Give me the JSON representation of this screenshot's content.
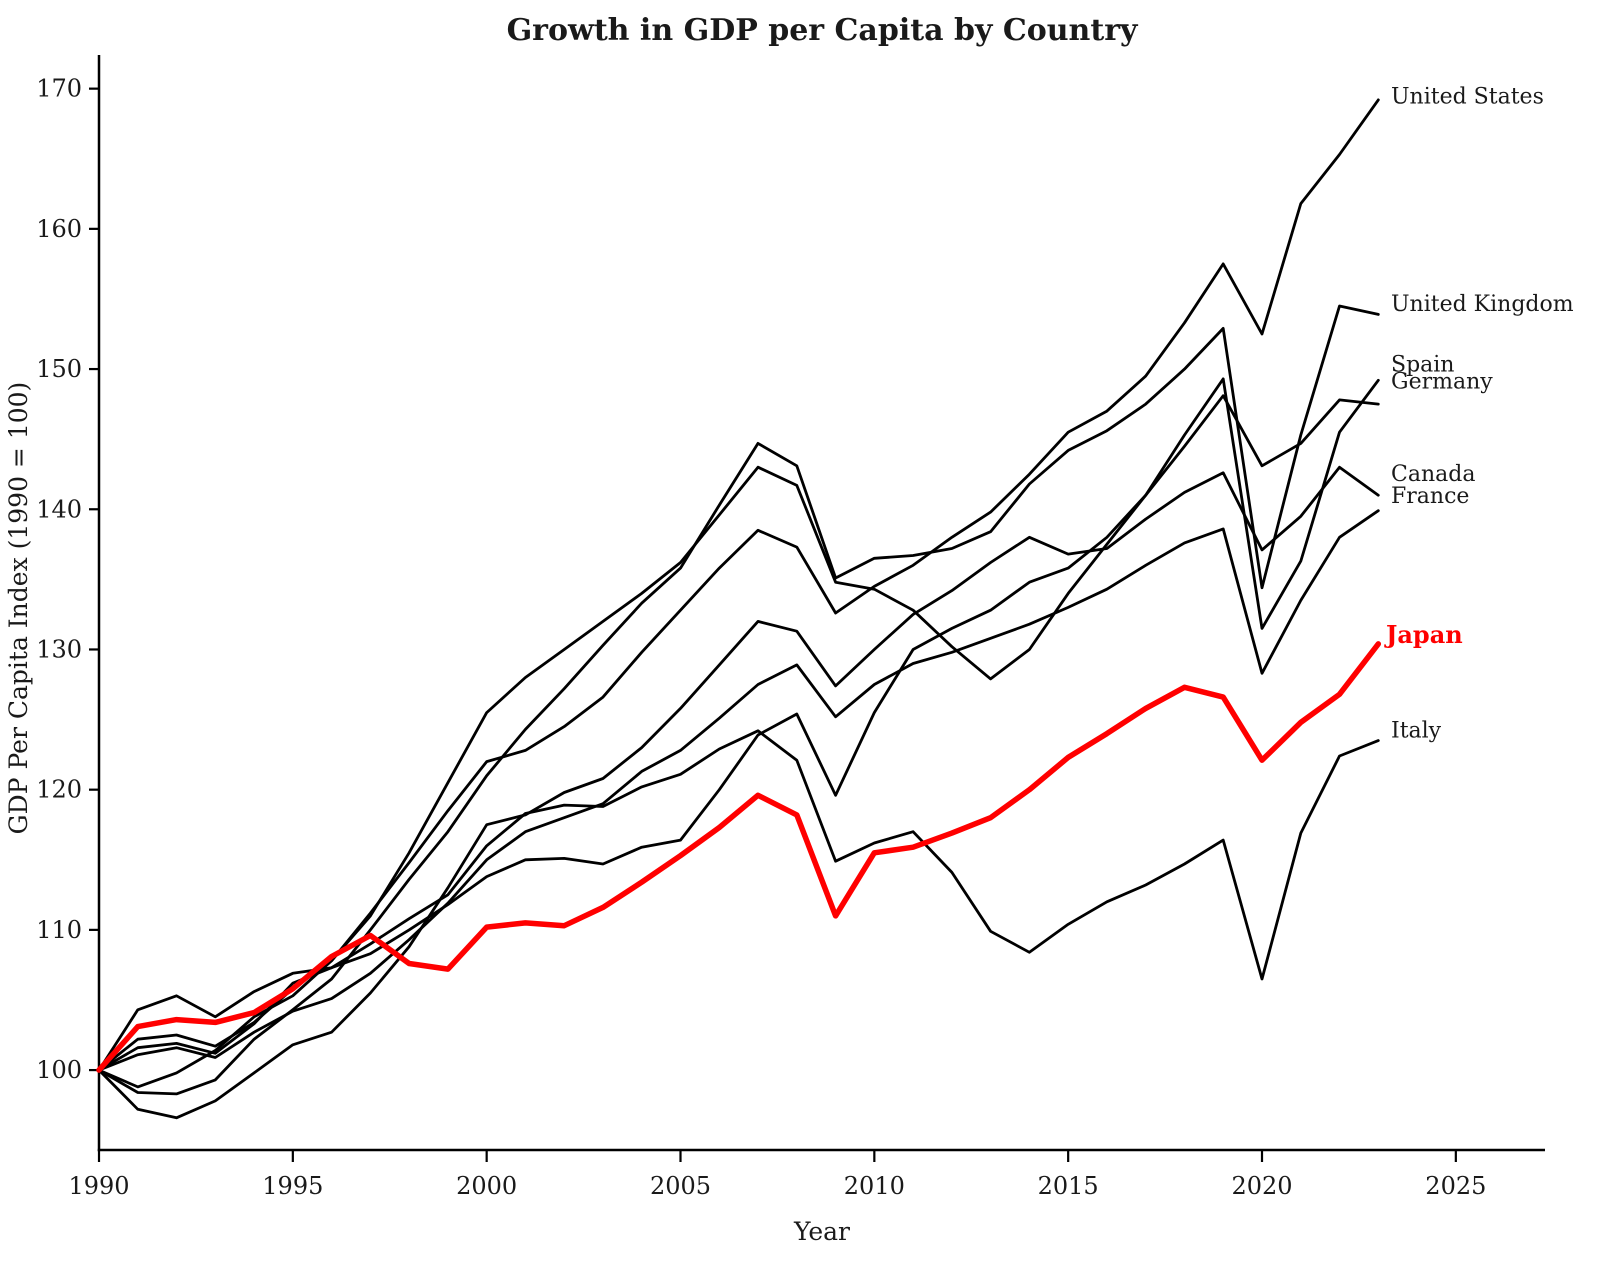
{
  "chart_data": {
    "type": "line",
    "title": "Growth in GDP per Capita by Country",
    "xlabel": "Year",
    "ylabel": "GDP Per Capita Index (1990 = 100)",
    "x_ticks": [
      1990,
      1995,
      2000,
      2005,
      2010,
      2015,
      2020,
      2025
    ],
    "y_ticks": [
      100,
      110,
      120,
      130,
      140,
      150,
      160,
      170
    ],
    "xlim": [
      1990,
      2027.3
    ],
    "ylim": [
      94.3,
      172.4
    ],
    "grid": false,
    "legend_position": "right-end-of-line-labels",
    "axis_color": "#000000",
    "accent_color": "#ff0000",
    "years": [
      1990,
      1991,
      1992,
      1993,
      1994,
      1995,
      1996,
      1997,
      1998,
      1999,
      2000,
      2001,
      2002,
      2003,
      2004,
      2005,
      2006,
      2007,
      2008,
      2009,
      2010,
      2011,
      2012,
      2013,
      2014,
      2015,
      2016,
      2017,
      2018,
      2019,
      2020,
      2021,
      2022,
      2023
    ],
    "series": [
      {
        "name": "United States",
        "color": "#000000",
        "line_width": 2.8,
        "label_bold": false,
        "label_value": 169.5,
        "values": [
          100,
          98.8,
          99.8,
          101.4,
          103.8,
          105.3,
          107.8,
          111.2,
          114.8,
          118.5,
          122.0,
          122.8,
          124.5,
          126.6,
          129.8,
          132.8,
          135.8,
          138.5,
          137.3,
          132.6,
          134.5,
          136.0,
          138.0,
          139.8,
          142.5,
          145.5,
          147.0,
          149.5,
          153.3,
          157.5,
          152.5,
          161.8,
          165.3,
          169.2
        ]
      },
      {
        "name": "United Kingdom",
        "color": "#000000",
        "line_width": 2.8,
        "label_bold": false,
        "label_value": 154.7,
        "values": [
          100,
          98.4,
          98.3,
          99.3,
          102.2,
          104.3,
          106.5,
          110.0,
          113.6,
          117.0,
          121.0,
          124.3,
          127.2,
          130.3,
          133.3,
          135.8,
          140.3,
          144.7,
          143.1,
          135.1,
          136.5,
          136.7,
          137.2,
          138.4,
          141.8,
          144.2,
          145.6,
          147.5,
          150.0,
          152.9,
          134.4,
          145.3,
          154.5,
          153.9
        ]
      },
      {
        "name": "Spain",
        "color": "#000000",
        "line_width": 2.8,
        "label_bold": false,
        "label_value": 150.4,
        "values": [
          100,
          102.2,
          102.5,
          101.7,
          103.4,
          105.8,
          107.8,
          111.0,
          115.5,
          120.5,
          125.5,
          128.0,
          130.0,
          132.0,
          134.0,
          136.2,
          139.6,
          143.0,
          141.7,
          134.8,
          134.3,
          132.8,
          130.2,
          127.9,
          130.0,
          134.0,
          137.5,
          141.0,
          145.3,
          149.3,
          131.5,
          136.3,
          145.5,
          149.2
        ]
      },
      {
        "name": "Germany",
        "color": "#000000",
        "line_width": 2.8,
        "label_bold": false,
        "label_value": 149.2,
        "values": [
          100,
          104.3,
          105.3,
          103.8,
          105.6,
          106.9,
          107.3,
          108.3,
          110.0,
          111.8,
          113.8,
          115.0,
          115.1,
          114.7,
          115.9,
          116.4,
          120.0,
          123.9,
          125.4,
          119.6,
          125.5,
          130.0,
          131.5,
          132.8,
          134.8,
          135.8,
          138.0,
          141.0,
          144.5,
          148.1,
          143.1,
          144.7,
          147.8,
          147.5
        ]
      },
      {
        "name": "Canada",
        "color": "#000000",
        "line_width": 2.8,
        "label_bold": false,
        "label_value": 142.6,
        "values": [
          100,
          97.2,
          96.6,
          97.8,
          99.8,
          101.8,
          102.7,
          105.5,
          108.8,
          113.0,
          117.5,
          118.2,
          119.8,
          120.8,
          123.0,
          125.8,
          128.9,
          132.0,
          131.3,
          127.4,
          130.0,
          132.5,
          134.2,
          136.2,
          138.0,
          136.8,
          137.2,
          139.3,
          141.2,
          142.6,
          137.1,
          139.5,
          143.0,
          141.0
        ]
      },
      {
        "name": "France",
        "color": "#000000",
        "line_width": 2.8,
        "label_bold": false,
        "label_value": 141.0,
        "values": [
          100,
          101.1,
          101.6,
          100.9,
          102.7,
          104.2,
          105.1,
          106.9,
          109.3,
          111.9,
          115.0,
          117.0,
          118.0,
          119.0,
          121.3,
          122.8,
          125.1,
          127.5,
          128.9,
          125.2,
          127.5,
          129.0,
          129.8,
          130.8,
          131.8,
          133.0,
          134.3,
          136.0,
          137.6,
          138.6,
          128.3,
          133.5,
          138.0,
          139.9
        ]
      },
      {
        "name": "Italy",
        "color": "#000000",
        "line_width": 2.8,
        "label_bold": false,
        "label_value": 124.3,
        "values": [
          100,
          101.6,
          101.9,
          101.2,
          103.3,
          106.2,
          107.3,
          109.0,
          110.8,
          112.5,
          116.0,
          118.3,
          118.9,
          118.8,
          120.2,
          121.1,
          122.9,
          124.2,
          122.1,
          114.9,
          116.2,
          117.0,
          114.1,
          109.9,
          108.4,
          110.4,
          112.0,
          113.2,
          114.7,
          116.4,
          106.5,
          116.9,
          122.4,
          123.5
        ]
      },
      {
        "name": "Japan",
        "color": "#ff0000",
        "line_width": 5.5,
        "label_bold": true,
        "label_value": 131.1,
        "values": [
          100,
          103.1,
          103.6,
          103.4,
          104.1,
          105.8,
          108.1,
          109.6,
          107.6,
          107.2,
          110.2,
          110.5,
          110.3,
          111.6,
          113.4,
          115.3,
          117.3,
          119.6,
          118.2,
          111.0,
          115.5,
          115.9,
          116.9,
          118.0,
          120.0,
          122.3,
          124.0,
          125.8,
          127.3,
          126.6,
          122.1,
          124.8,
          126.8,
          130.4
        ]
      }
    ]
  }
}
